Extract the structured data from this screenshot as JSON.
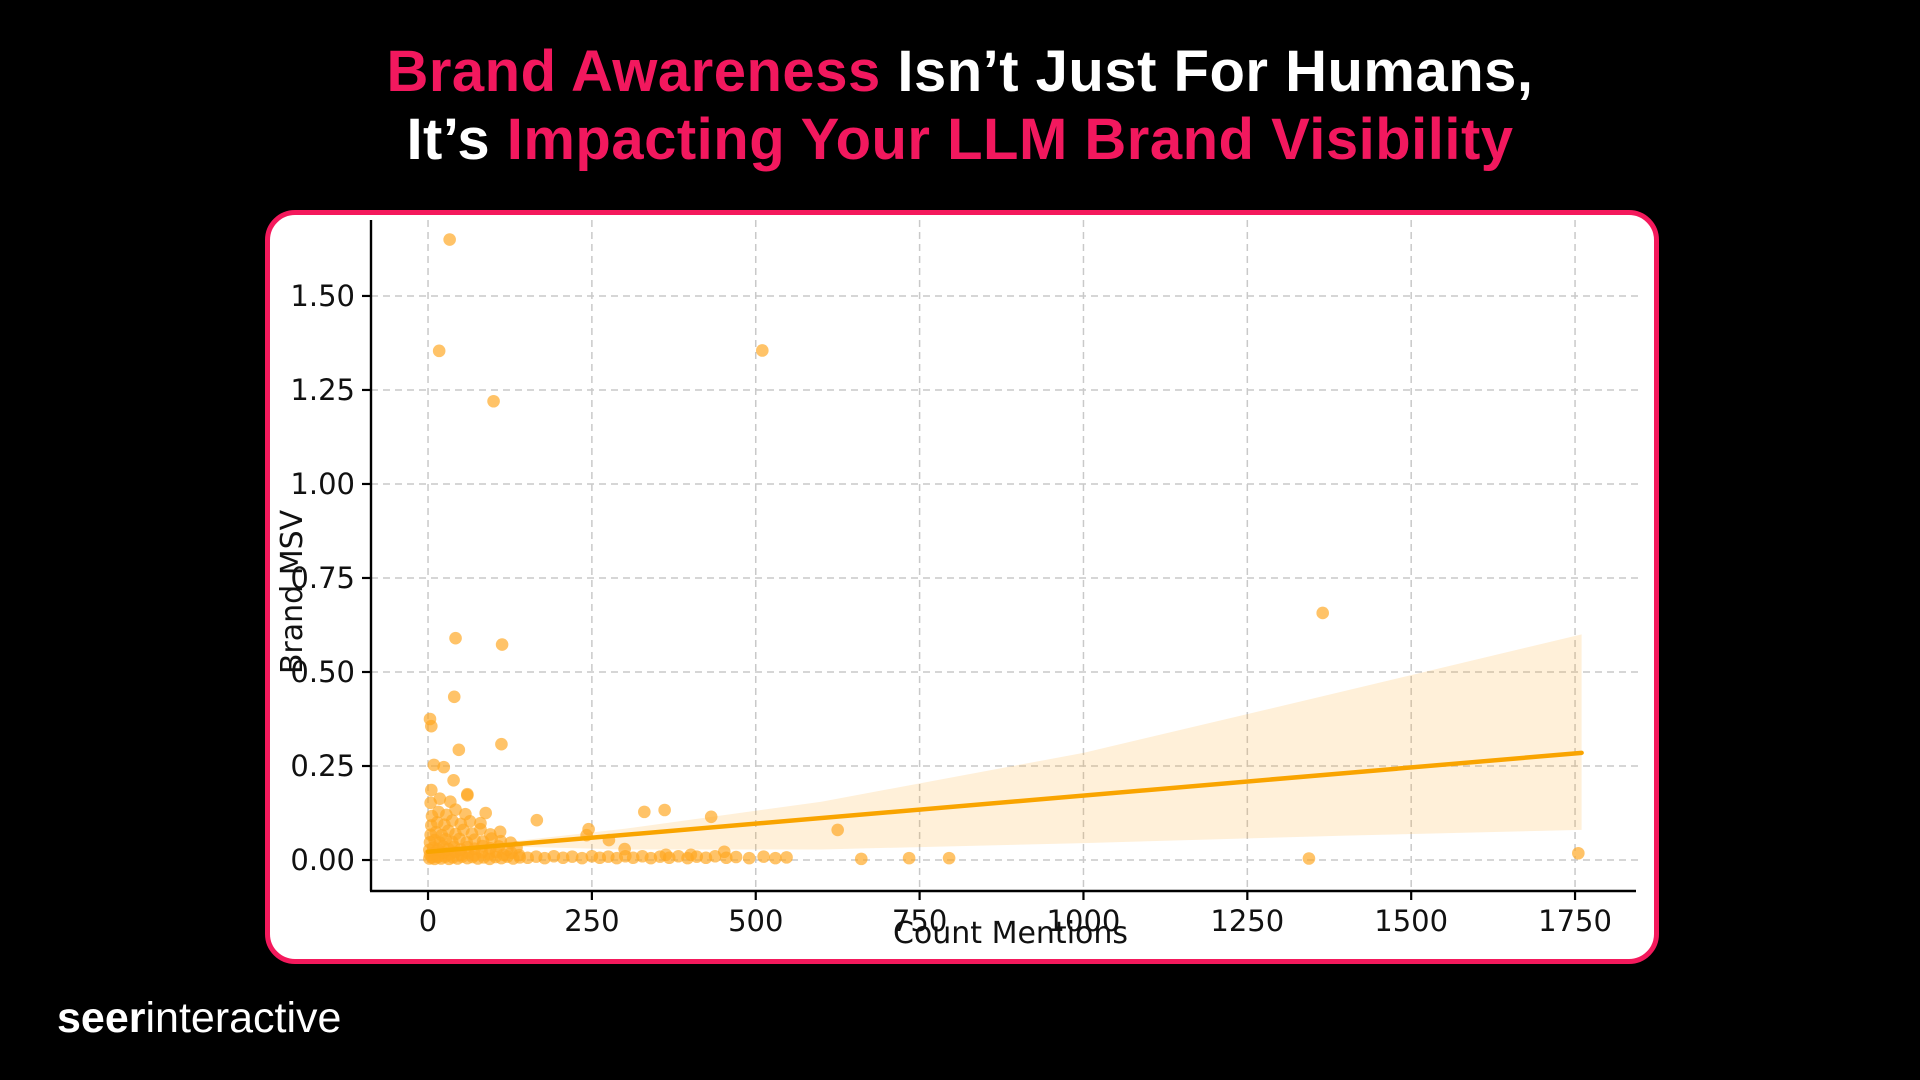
{
  "title": {
    "accent1": "Brand Awareness",
    "rest1": " Isn’t Just For Humans,",
    "prefix2": "It’s ",
    "accent2": "Impacting Your LLM Brand Visibility"
  },
  "logo": {
    "bold": "seer",
    "light": "interactive"
  },
  "colors": {
    "page_bg": "#000000",
    "card_bg": "#FFFFFF",
    "accent_pink": "#F2185E",
    "card_border": "#F4195C",
    "dot": "#FFA620",
    "reg_line": "#F9A400",
    "band": "#FFA620",
    "grid": "#C9C9C9",
    "axis": "#000000",
    "tick_text": "#111111"
  },
  "chart_data": {
    "type": "scatter",
    "title": "",
    "xlabel": "Count Mentions",
    "ylabel": "Brand MSV",
    "xlim": [
      -87,
      1843
    ],
    "ylim": [
      -0.0824,
      1.702
    ],
    "grid": "dashed",
    "x_ticks": [
      0,
      250,
      500,
      750,
      1000,
      1250,
      1500,
      1750
    ],
    "x_tick_labels": [
      "0",
      "250",
      "500",
      "750",
      "1000",
      "1250",
      "1500",
      "1750"
    ],
    "y_ticks": [
      0.0,
      0.25,
      0.5,
      0.75,
      1.0,
      1.25,
      1.5
    ],
    "y_tick_labels": [
      "0.00",
      "0.25",
      "0.50",
      "0.75",
      "1.00",
      "1.25",
      "1.50"
    ],
    "marker_radius": 6.3,
    "marker_opacity": 0.68,
    "regression": {
      "x": [
        0,
        1760
      ],
      "y": [
        0.022,
        0.285
      ]
    },
    "ci_band": {
      "x": [
        120,
        300,
        600,
        1000,
        1400,
        1760
      ],
      "upper": [
        0.048,
        0.083,
        0.155,
        0.285,
        0.45,
        0.6
      ],
      "lower": [
        0.036,
        0.028,
        0.028,
        0.045,
        0.065,
        0.08
      ],
      "opacity": 0.17
    },
    "points": [
      [
        2,
        0.004
      ],
      [
        6,
        0.007
      ],
      [
        10,
        0.003
      ],
      [
        15,
        0.008
      ],
      [
        20,
        0.004
      ],
      [
        26,
        0.009
      ],
      [
        32,
        0.003
      ],
      [
        38,
        0.007
      ],
      [
        45,
        0.004
      ],
      [
        52,
        0.009
      ],
      [
        60,
        0.005
      ],
      [
        68,
        0.008
      ],
      [
        76,
        0.004
      ],
      [
        85,
        0.007
      ],
      [
        94,
        0.003
      ],
      [
        103,
        0.008
      ],
      [
        112,
        0.005
      ],
      [
        121,
        0.009
      ],
      [
        130,
        0.004
      ],
      [
        140,
        0.007
      ],
      [
        3,
        0.014
      ],
      [
        9,
        0.019
      ],
      [
        16,
        0.013
      ],
      [
        24,
        0.02
      ],
      [
        33,
        0.015
      ],
      [
        42,
        0.021
      ],
      [
        51,
        0.014
      ],
      [
        61,
        0.019
      ],
      [
        71,
        0.013
      ],
      [
        82,
        0.02
      ],
      [
        93,
        0.015
      ],
      [
        104,
        0.021
      ],
      [
        115,
        0.014
      ],
      [
        127,
        0.019
      ],
      [
        139,
        0.013
      ],
      [
        2,
        0.027
      ],
      [
        8,
        0.033
      ],
      [
        15,
        0.028
      ],
      [
        23,
        0.036
      ],
      [
        31,
        0.029
      ],
      [
        40,
        0.035
      ],
      [
        50,
        0.028
      ],
      [
        60,
        0.034
      ],
      [
        71,
        0.03
      ],
      [
        83,
        0.037
      ],
      [
        95,
        0.031
      ],
      [
        108,
        0.036
      ],
      [
        121,
        0.028
      ],
      [
        135,
        0.033
      ],
      [
        3,
        0.047
      ],
      [
        10,
        0.053
      ],
      [
        18,
        0.046
      ],
      [
        27,
        0.055
      ],
      [
        37,
        0.048
      ],
      [
        48,
        0.056
      ],
      [
        59,
        0.047
      ],
      [
        71,
        0.054
      ],
      [
        84,
        0.049
      ],
      [
        97,
        0.057
      ],
      [
        111,
        0.05
      ],
      [
        126,
        0.046
      ],
      [
        4,
        0.067
      ],
      [
        12,
        0.074
      ],
      [
        21,
        0.066
      ],
      [
        31,
        0.078
      ],
      [
        42,
        0.069
      ],
      [
        54,
        0.08
      ],
      [
        67,
        0.07
      ],
      [
        80,
        0.082
      ],
      [
        95,
        0.068
      ],
      [
        110,
        0.075
      ],
      [
        5,
        0.092
      ],
      [
        14,
        0.1
      ],
      [
        25,
        0.094
      ],
      [
        37,
        0.105
      ],
      [
        50,
        0.096
      ],
      [
        64,
        0.103
      ],
      [
        80,
        0.098
      ],
      [
        6,
        0.117
      ],
      [
        16,
        0.128
      ],
      [
        28,
        0.12
      ],
      [
        42,
        0.134
      ],
      [
        57,
        0.122
      ],
      [
        88,
        0.125
      ],
      [
        4,
        0.152
      ],
      [
        18,
        0.163
      ],
      [
        34,
        0.155
      ],
      [
        60,
        0.172
      ],
      [
        152,
        0.006
      ],
      [
        165,
        0.009
      ],
      [
        178,
        0.005
      ],
      [
        192,
        0.01
      ],
      [
        206,
        0.006
      ],
      [
        220,
        0.009
      ],
      [
        235,
        0.005
      ],
      [
        250,
        0.01
      ],
      [
        262,
        0.006
      ],
      [
        275,
        0.009
      ],
      [
        288,
        0.005
      ],
      [
        300,
        0.029
      ],
      [
        301,
        0.01
      ],
      [
        313,
        0.006
      ],
      [
        327,
        0.01
      ],
      [
        340,
        0.005
      ],
      [
        354,
        0.009
      ],
      [
        368,
        0.006
      ],
      [
        382,
        0.01
      ],
      [
        396,
        0.005
      ],
      [
        410,
        0.009
      ],
      [
        424,
        0.006
      ],
      [
        438,
        0.01
      ],
      [
        452,
        0.022
      ],
      [
        455,
        0.006
      ],
      [
        470,
        0.008
      ],
      [
        490,
        0.005
      ],
      [
        512,
        0.009
      ],
      [
        530,
        0.005
      ],
      [
        547,
        0.007
      ],
      [
        661,
        0.003
      ],
      [
        734,
        0.005
      ],
      [
        795,
        0.005
      ],
      [
        1344,
        0.004
      ],
      [
        1755,
        0.018
      ],
      [
        166,
        0.106
      ],
      [
        242,
        0.066
      ],
      [
        245,
        0.082
      ],
      [
        276,
        0.053
      ],
      [
        361,
        0.133
      ],
      [
        432,
        0.115
      ],
      [
        363,
        0.014
      ],
      [
        401,
        0.014
      ],
      [
        625,
        0.08
      ],
      [
        330,
        0.128
      ],
      [
        5,
        0.186
      ],
      [
        60,
        0.175
      ],
      [
        9,
        0.253
      ],
      [
        24,
        0.247
      ],
      [
        39,
        0.212
      ],
      [
        47,
        0.293
      ],
      [
        112,
        0.308
      ],
      [
        3,
        0.375
      ],
      [
        5,
        0.356
      ],
      [
        40,
        0.434
      ],
      [
        42,
        0.59
      ],
      [
        113,
        0.573
      ],
      [
        100,
        1.22
      ],
      [
        17,
        1.354
      ],
      [
        510,
        1.355
      ],
      [
        33,
        1.65
      ],
      [
        1365,
        0.657
      ]
    ]
  }
}
